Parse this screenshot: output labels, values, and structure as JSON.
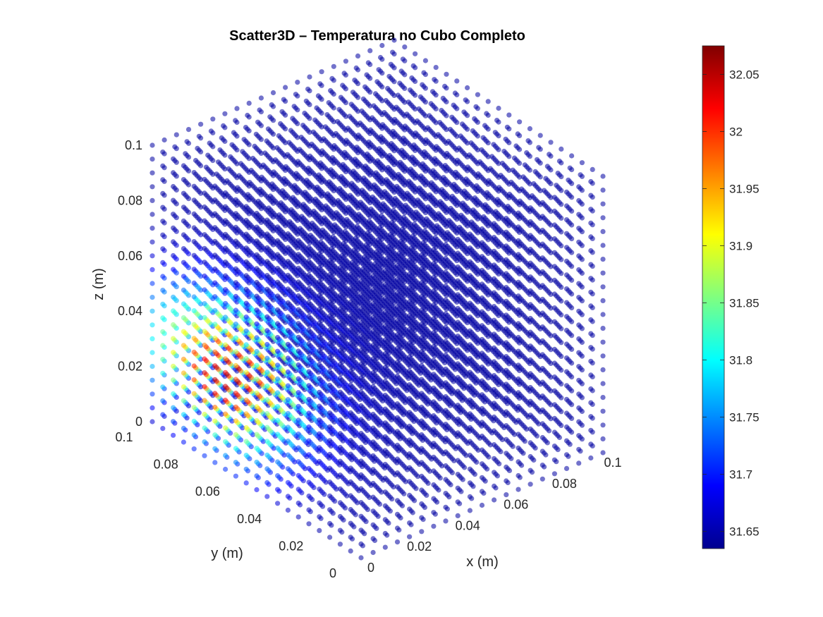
{
  "chart_data": {
    "type": "scatter3d",
    "title": "Scatter3D – Temperatura no Cubo Completo",
    "xlabel": "x (m)",
    "ylabel": "y (m)",
    "zlabel": "z (m)",
    "xlim": [
      0,
      0.1
    ],
    "ylim": [
      0,
      0.1
    ],
    "zlim": [
      0,
      0.1
    ],
    "x_ticks": [
      "0",
      "0.02",
      "0.04",
      "0.06",
      "0.08",
      "0.1"
    ],
    "y_ticks": [
      "0",
      "0.02",
      "0.04",
      "0.06",
      "0.08",
      "0.1"
    ],
    "z_ticks": [
      "0",
      "0.02",
      "0.04",
      "0.06",
      "0.08",
      "0.1"
    ],
    "grid_points_per_axis": 21,
    "colormap": "jet",
    "colorbar": {
      "min": 31.635,
      "max": 32.075,
      "ticks": [
        "31.65",
        "31.7",
        "31.75",
        "31.8",
        "31.85",
        "31.9",
        "31.95",
        "32",
        "32.05"
      ]
    },
    "temperature_field": {
      "background": 31.65,
      "hotspot_center": {
        "x": 0.005,
        "y": 0.07,
        "z": 0.03
      },
      "hotspot_peak": 32.07
    }
  }
}
